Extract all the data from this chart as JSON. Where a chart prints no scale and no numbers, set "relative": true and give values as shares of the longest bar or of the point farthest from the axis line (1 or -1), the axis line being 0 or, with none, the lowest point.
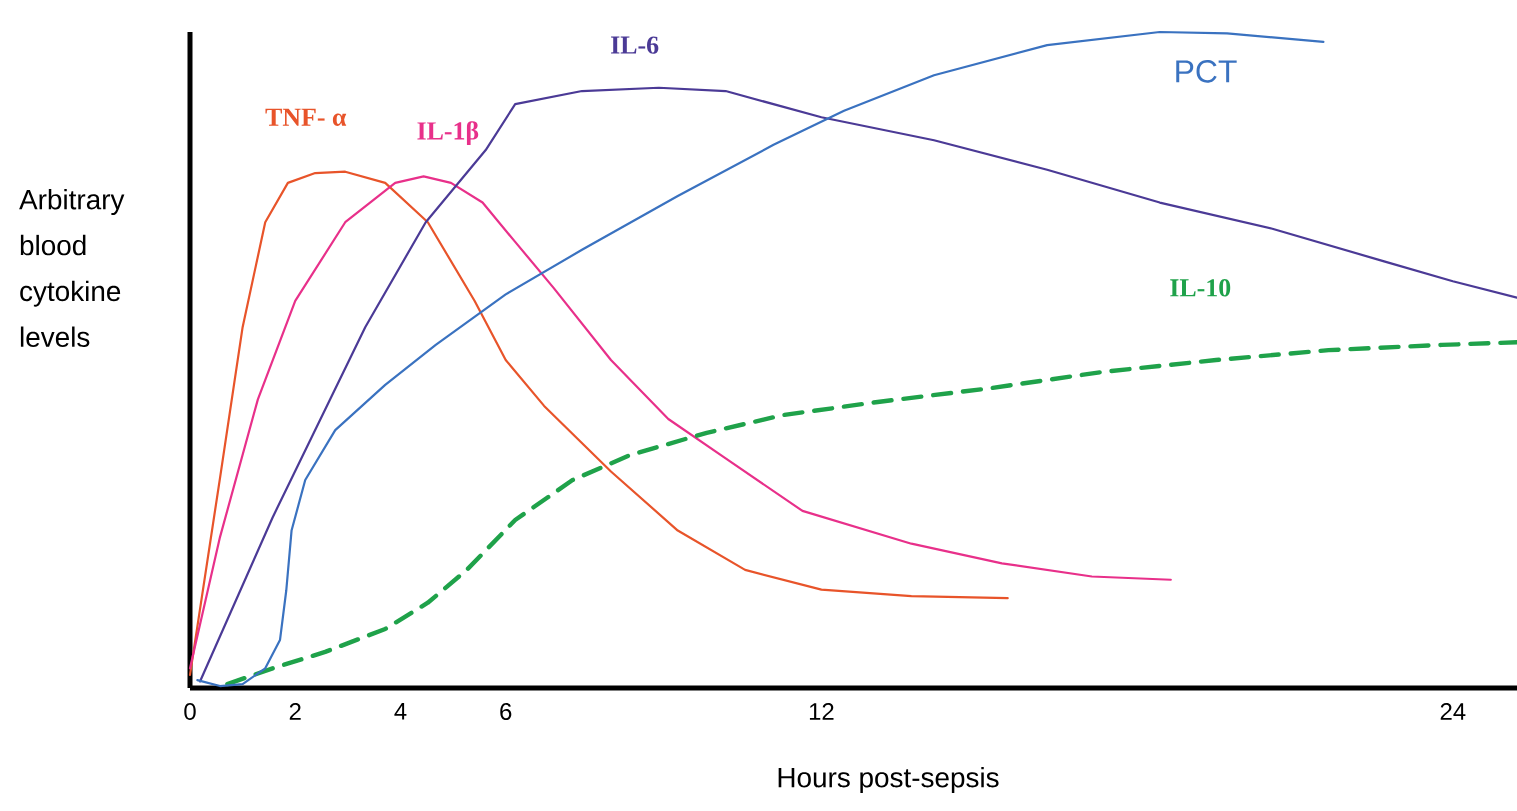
{
  "chart_data": {
    "type": "line",
    "relative": true,
    "xlabel": "Hours post-sepsis",
    "ylabel": "Arbitrary blood cytokine levels",
    "xlim": [
      0,
      25.22
    ],
    "xticks": [
      0,
      2,
      4,
      6,
      12,
      24
    ],
    "marker": "none",
    "grid": false,
    "legend": false,
    "series": [
      {
        "name": "TNF- α",
        "color": "#e8542a",
        "line_style": "solid",
        "x": [
          0,
          0.57,
          1.0,
          1.43,
          1.86,
          2.38,
          2.95,
          3.71,
          4.52,
          5.41,
          6,
          6.73,
          8,
          9.27,
          10.55,
          12,
          13.71,
          15.54
        ],
        "values": [
          0.02,
          0.32,
          0.55,
          0.71,
          0.77,
          0.785,
          0.787,
          0.77,
          0.71,
          0.59,
          0.5,
          0.43,
          0.33,
          0.24,
          0.18,
          0.15,
          0.14,
          0.137
        ]
      },
      {
        "name": "IL-1β",
        "color": "#e8308a",
        "line_style": "solid",
        "x": [
          0,
          0.57,
          1.29,
          2,
          2.95,
          3.9,
          4.44,
          4.96,
          5.56,
          6.18,
          6.91,
          8,
          9.09,
          10.18,
          11.64,
          13.71,
          15.43,
          17.14,
          18.64
        ],
        "values": [
          0.03,
          0.23,
          0.44,
          0.59,
          0.71,
          0.77,
          0.78,
          0.77,
          0.74,
          0.68,
          0.61,
          0.5,
          0.41,
          0.35,
          0.27,
          0.22,
          0.19,
          0.17,
          0.165
        ]
      },
      {
        "name": "IL-6",
        "color": "#4b3a96",
        "line_style": "solid",
        "x": [
          0.19,
          1.57,
          3.33,
          4.48,
          5.62,
          6.18,
          7.45,
          8.91,
          10.18,
          12,
          14.14,
          16.29,
          18.43,
          20.57,
          22.71,
          24,
          25.22
        ],
        "values": [
          0.01,
          0.26,
          0.55,
          0.71,
          0.82,
          0.89,
          0.91,
          0.915,
          0.91,
          0.87,
          0.835,
          0.79,
          0.74,
          0.7,
          0.65,
          0.62,
          0.595
        ]
      },
      {
        "name": "IL-10",
        "color": "#1fa24a",
        "line_style": "dashed",
        "x": [
          0.71,
          1.57,
          2.57,
          3.71,
          4.52,
          5.26,
          6.18,
          7.27,
          8.36,
          9.82,
          11.27,
          13.07,
          15.21,
          17.36,
          19.5,
          21.64,
          23.79,
          25.22
        ],
        "values": [
          0.006,
          0.03,
          0.055,
          0.09,
          0.13,
          0.18,
          0.256,
          0.317,
          0.355,
          0.389,
          0.416,
          0.436,
          0.457,
          0.482,
          0.5,
          0.515,
          0.523,
          0.527
        ]
      },
      {
        "name": "PCT",
        "color": "#3a72c0",
        "line_style": "solid",
        "x": [
          0.14,
          0.57,
          1.0,
          1.43,
          1.71,
          1.83,
          1.93,
          2.19,
          2.76,
          3.71,
          4.67,
          6,
          7.45,
          9.27,
          11.09,
          12.43,
          14.14,
          16.29,
          18.43,
          19.71,
          21.54
        ],
        "values": [
          0.012,
          0.003,
          0.006,
          0.03,
          0.073,
          0.149,
          0.24,
          0.317,
          0.393,
          0.462,
          0.523,
          0.6,
          0.668,
          0.75,
          0.828,
          0.88,
          0.934,
          0.98,
          1.0,
          0.998,
          0.985
        ]
      }
    ]
  }
}
